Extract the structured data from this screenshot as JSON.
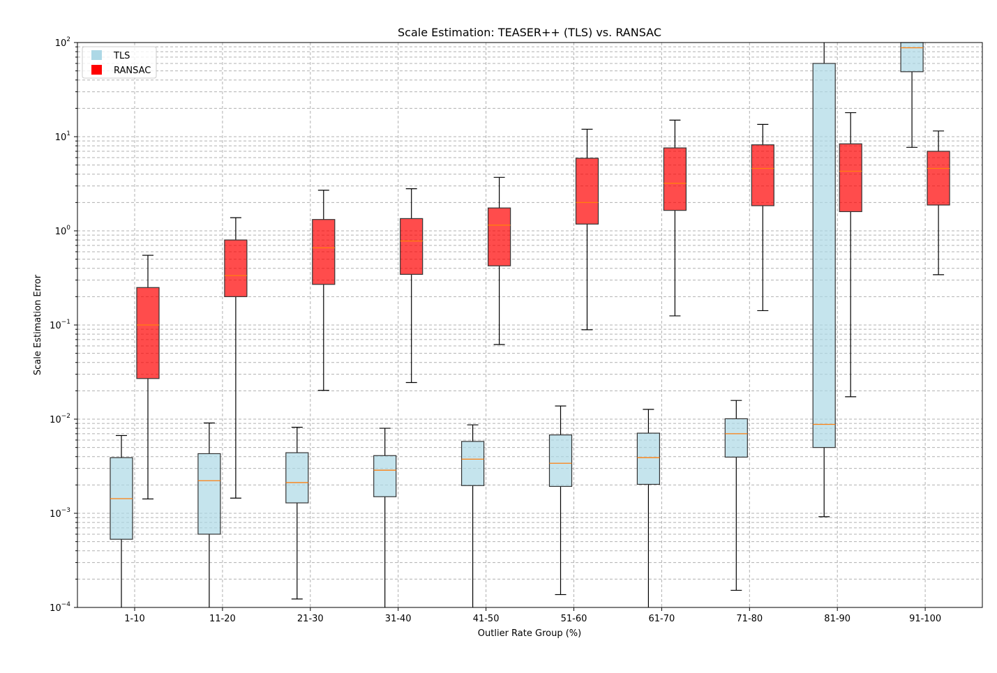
{
  "chart_data": {
    "type": "box",
    "title": "Scale Estimation: TEASER++ (TLS) vs. RANSAC",
    "xlabel": "Outlier Rate Group (%)",
    "ylabel": "Scale Estimation Error",
    "yscale": "log",
    "ylim": [
      0.0001,
      100
    ],
    "grid": "on",
    "legend_position": "top-left",
    "categories": [
      "1-10",
      "11-20",
      "21-30",
      "31-40",
      "41-50",
      "51-60",
      "61-70",
      "71-80",
      "81-90",
      "91-100"
    ],
    "y_ticks": [
      {
        "base": "10",
        "exp": "−4",
        "value": 0.0001
      },
      {
        "base": "10",
        "exp": "−3",
        "value": 0.001
      },
      {
        "base": "10",
        "exp": "−2",
        "value": 0.01
      },
      {
        "base": "10",
        "exp": "−1",
        "value": 0.1
      },
      {
        "base": "10",
        "exp": "0",
        "value": 1
      },
      {
        "base": "10",
        "exp": "1",
        "value": 10
      },
      {
        "base": "10",
        "exp": "2",
        "value": 100
      }
    ],
    "median_color": "#ff7f0e",
    "series": [
      {
        "name": "TLS",
        "color": "#add8e6",
        "whisker_low": [
          5e-05,
          5e-05,
          0.000123,
          5e-05,
          5e-05,
          0.000137,
          5e-05,
          0.000152,
          0.00092,
          7.7
        ],
        "q1": [
          0.00053,
          0.0006,
          0.00129,
          0.0015,
          0.00197,
          0.00193,
          0.00203,
          0.00395,
          0.005,
          49
        ],
        "median": [
          0.00143,
          0.00222,
          0.00212,
          0.00287,
          0.00376,
          0.0034,
          0.0039,
          0.007,
          0.0088,
          88
        ],
        "q3": [
          0.0039,
          0.0043,
          0.0044,
          0.0041,
          0.0058,
          0.0068,
          0.0071,
          0.0101,
          60,
          300
        ],
        "whisker_high": [
          0.0067,
          0.0091,
          0.0082,
          0.008,
          0.0087,
          0.0138,
          0.0127,
          0.0158,
          300,
          300
        ]
      },
      {
        "name": "RANSAC",
        "color": "#ff0000",
        "whisker_low": [
          0.00142,
          0.00145,
          0.0202,
          0.0245,
          0.062,
          0.089,
          0.125,
          0.142,
          0.0173,
          0.342
        ],
        "q1": [
          0.027,
          0.2,
          0.27,
          0.345,
          0.425,
          1.18,
          1.65,
          1.85,
          1.6,
          1.88
        ],
        "median": [
          0.1,
          0.335,
          0.66,
          0.78,
          1.15,
          2.0,
          3.2,
          4.6,
          4.3,
          4.6
        ],
        "q3": [
          0.25,
          0.8,
          1.32,
          1.35,
          1.75,
          5.9,
          7.6,
          8.2,
          8.4,
          7.0
        ],
        "whisker_high": [
          0.55,
          1.38,
          2.7,
          2.8,
          3.7,
          12,
          15,
          13.5,
          18,
          11.5
        ]
      }
    ]
  }
}
